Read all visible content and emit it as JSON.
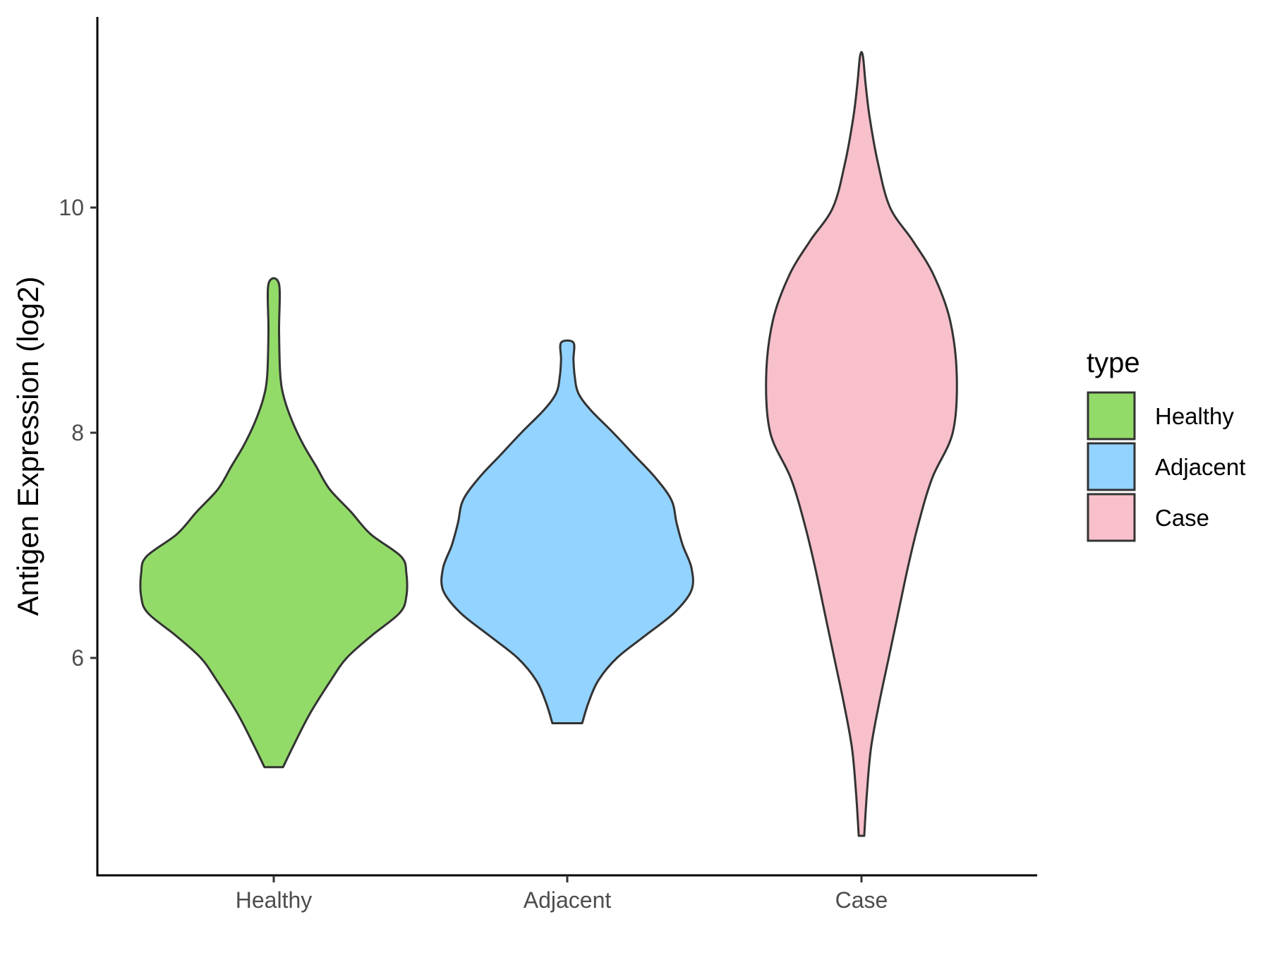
{
  "chart_data": {
    "type": "violin",
    "ylabel": "Antigen Expression (log2)",
    "xlabel": "",
    "categories": [
      "Healthy",
      "Adjacent",
      "Case"
    ],
    "yticks": [
      6,
      8,
      10
    ],
    "ylim": [
      4.1,
      11.7
    ],
    "grid": false,
    "legend": {
      "title": "type",
      "position": "right",
      "entries": [
        "Healthy",
        "Adjacent",
        "Case"
      ]
    },
    "colors": {
      "Healthy": "#93DB69",
      "Adjacent": "#93D3FF",
      "Case": "#F7C0CB",
      "outline": "#333333"
    },
    "series": [
      {
        "category": "Healthy",
        "min": 5.03,
        "max": 9.32,
        "density": [
          [
            5.03,
            0.07
          ],
          [
            5.2,
            0.14
          ],
          [
            5.5,
            0.27
          ],
          [
            5.8,
            0.43
          ],
          [
            6.0,
            0.55
          ],
          [
            6.2,
            0.74
          ],
          [
            6.4,
            0.95
          ],
          [
            6.55,
            1.0
          ],
          [
            6.75,
            1.0
          ],
          [
            6.9,
            0.96
          ],
          [
            7.1,
            0.73
          ],
          [
            7.3,
            0.58
          ],
          [
            7.5,
            0.42
          ],
          [
            7.7,
            0.32
          ],
          [
            7.9,
            0.22
          ],
          [
            8.1,
            0.14
          ],
          [
            8.3,
            0.08
          ],
          [
            8.5,
            0.05
          ],
          [
            8.9,
            0.04
          ],
          [
            9.32,
            0.04
          ]
        ]
      },
      {
        "category": "Adjacent",
        "min": 5.42,
        "max": 8.8,
        "density": [
          [
            5.42,
            0.12
          ],
          [
            5.6,
            0.17
          ],
          [
            5.8,
            0.25
          ],
          [
            6.0,
            0.4
          ],
          [
            6.2,
            0.63
          ],
          [
            6.4,
            0.86
          ],
          [
            6.6,
            1.0
          ],
          [
            6.8,
            1.0
          ],
          [
            7.0,
            0.93
          ],
          [
            7.2,
            0.88
          ],
          [
            7.4,
            0.84
          ],
          [
            7.6,
            0.71
          ],
          [
            7.8,
            0.54
          ],
          [
            8.0,
            0.37
          ],
          [
            8.2,
            0.19
          ],
          [
            8.35,
            0.09
          ],
          [
            8.5,
            0.06
          ],
          [
            8.65,
            0.05
          ],
          [
            8.8,
            0.05
          ]
        ]
      },
      {
        "category": "Case",
        "min": 4.42,
        "max": 11.35,
        "density": [
          [
            4.42,
            0.02
          ],
          [
            4.8,
            0.04
          ],
          [
            5.2,
            0.07
          ],
          [
            5.6,
            0.13
          ],
          [
            6.0,
            0.2
          ],
          [
            6.4,
            0.27
          ],
          [
            6.8,
            0.34
          ],
          [
            7.2,
            0.42
          ],
          [
            7.6,
            0.52
          ],
          [
            8.0,
            0.67
          ],
          [
            8.5,
            0.7
          ],
          [
            9.0,
            0.65
          ],
          [
            9.4,
            0.53
          ],
          [
            9.7,
            0.38
          ],
          [
            10.0,
            0.21
          ],
          [
            10.4,
            0.12
          ],
          [
            10.8,
            0.06
          ],
          [
            11.1,
            0.03
          ],
          [
            11.35,
            0.01
          ]
        ]
      }
    ]
  }
}
